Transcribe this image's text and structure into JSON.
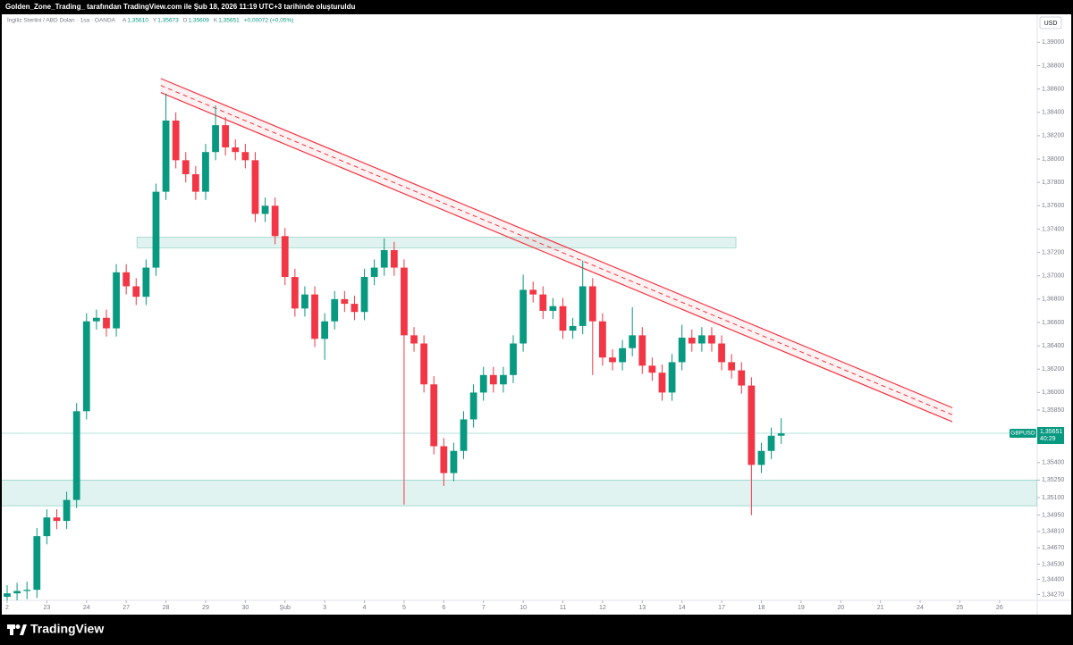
{
  "header": {
    "text": "Golden_Zone_Trading_ tarafından TradingView.com ile Şub 18, 2026 11:19 UTC+3 tarihinde oluşturuldu"
  },
  "footer": {
    "brand": "TradingView"
  },
  "chart_data": {
    "type": "candlestick",
    "instrument": "İngiliz Sterlini / ABD Doları · 1sa · OANDA",
    "ohlc_legend": [
      {
        "key": "A",
        "text": "1,35610"
      },
      {
        "key": "Y",
        "text": "1,35673"
      },
      {
        "key": "D",
        "text": "1,35609"
      },
      {
        "key": "K",
        "text": "1,35651"
      }
    ],
    "change_text": "+0,00072 (+0,05%)",
    "currency": "USD",
    "symbol": "GBPUSD",
    "last_price": {
      "value": 1.35651,
      "label": "1,35651"
    },
    "countdown": "40:29",
    "up_color": "#089981",
    "down_color": "#f23645",
    "grid": false,
    "xlim": [
      -0.18,
      25.95
    ],
    "ylim": [
      1.3422,
      1.3924
    ],
    "xticks": [
      {
        "value": 0,
        "label": "2"
      },
      {
        "value": 1,
        "label": "23"
      },
      {
        "value": 2,
        "label": "24"
      },
      {
        "value": 3,
        "label": "27"
      },
      {
        "value": 4,
        "label": "28"
      },
      {
        "value": 5,
        "label": "29"
      },
      {
        "value": 6,
        "label": "30"
      },
      {
        "value": 7,
        "label": "Şub"
      },
      {
        "value": 8,
        "label": "3"
      },
      {
        "value": 9,
        "label": "4"
      },
      {
        "value": 10,
        "label": "5"
      },
      {
        "value": 11,
        "label": "6"
      },
      {
        "value": 12,
        "label": "7"
      },
      {
        "value": 13,
        "label": "10"
      },
      {
        "value": 14,
        "label": "11"
      },
      {
        "value": 15,
        "label": "12"
      },
      {
        "value": 16,
        "label": "13"
      },
      {
        "value": 17,
        "label": "14"
      },
      {
        "value": 18,
        "label": "17"
      },
      {
        "value": 19,
        "label": "18"
      },
      {
        "value": 20,
        "label": "19"
      },
      {
        "value": 21,
        "label": "20"
      },
      {
        "value": 22,
        "label": "21"
      },
      {
        "value": 23,
        "label": "24"
      },
      {
        "value": 24,
        "label": "25"
      },
      {
        "value": 25,
        "label": "26"
      }
    ],
    "yticks": [
      {
        "value": 1.39,
        "label": "1,39000"
      },
      {
        "value": 1.388,
        "label": "1,38800"
      },
      {
        "value": 1.386,
        "label": "1,38600"
      },
      {
        "value": 1.384,
        "label": "1,38400"
      },
      {
        "value": 1.382,
        "label": "1,38200"
      },
      {
        "value": 1.38,
        "label": "1,38000"
      },
      {
        "value": 1.378,
        "label": "1,37800"
      },
      {
        "value": 1.376,
        "label": "1,37600"
      },
      {
        "value": 1.374,
        "label": "1,37400"
      },
      {
        "value": 1.372,
        "label": "1,37200"
      },
      {
        "value": 1.37,
        "label": "1,37000"
      },
      {
        "value": 1.368,
        "label": "1,36800"
      },
      {
        "value": 1.366,
        "label": "1,36600"
      },
      {
        "value": 1.364,
        "label": "1,36400"
      },
      {
        "value": 1.362,
        "label": "1,36200"
      },
      {
        "value": 1.36,
        "label": "1,36000"
      },
      {
        "value": 1.3585,
        "label": "1,35850"
      },
      {
        "value": 1.354,
        "label": "1,35400"
      },
      {
        "value": 1.3525,
        "label": "1,35250"
      },
      {
        "value": 1.351,
        "label": "1,35100"
      },
      {
        "value": 1.3495,
        "label": "1,34950"
      },
      {
        "value": 1.3481,
        "label": "1,34810"
      },
      {
        "value": 1.3467,
        "label": "1,34670"
      },
      {
        "value": 1.3453,
        "label": "1,34530"
      },
      {
        "value": 1.344,
        "label": "1,34400"
      },
      {
        "value": 1.3427,
        "label": "1,34270"
      }
    ],
    "x": [
      0,
      0.25,
      0.5,
      0.75,
      1,
      1.25,
      1.5,
      1.75,
      2,
      2.25,
      2.5,
      2.75,
      3,
      3.25,
      3.5,
      3.75,
      4,
      4.25,
      4.5,
      4.75,
      5,
      5.25,
      5.5,
      5.75,
      6,
      6.25,
      6.5,
      6.75,
      7,
      7.25,
      7.5,
      7.75,
      8,
      8.25,
      8.5,
      8.75,
      9,
      9.25,
      9.5,
      9.75,
      10,
      10.25,
      10.5,
      10.75,
      11,
      11.25,
      11.5,
      11.75,
      12,
      12.25,
      12.5,
      12.75,
      13,
      13.25,
      13.5,
      13.75,
      14,
      14.25,
      14.5,
      14.75,
      15,
      15.25,
      15.5,
      15.75,
      16,
      16.25,
      16.5,
      16.75,
      17,
      17.25,
      17.5,
      17.75,
      18,
      18.25,
      18.5,
      18.75,
      19,
      19.25,
      19.5
    ],
    "open": [
      1.3425,
      1.3428,
      1.343,
      1.3431,
      1.3477,
      1.3493,
      1.349,
      1.3508,
      1.3584,
      1.3661,
      1.3664,
      1.3655,
      1.3703,
      1.3691,
      1.3682,
      1.3707,
      1.3772,
      1.3833,
      1.3799,
      1.3787,
      1.3772,
      1.3806,
      1.3829,
      1.381,
      1.3806,
      1.3799,
      1.3753,
      1.376,
      1.3734,
      1.3699,
      1.3672,
      1.3684,
      1.3646,
      1.3661,
      1.368,
      1.3676,
      1.3669,
      1.3699,
      1.3707,
      1.3722,
      1.3707,
      1.3649,
      1.3642,
      1.3607,
      1.3554,
      1.3531,
      1.355,
      1.3577,
      1.36,
      1.3615,
      1.3607,
      1.3615,
      1.3642,
      1.3688,
      1.3684,
      1.367,
      1.3674,
      1.3653,
      1.3657,
      1.3691,
      1.3661,
      1.363,
      1.3626,
      1.3638,
      1.3649,
      1.3623,
      1.3617,
      1.36,
      1.3626,
      1.3647,
      1.3642,
      1.3649,
      1.3642,
      1.3626,
      1.3619,
      1.3606,
      1.3538,
      1.355,
      1.3563
    ],
    "high": [
      1.3435,
      1.3437,
      1.3438,
      1.3484,
      1.35,
      1.35,
      1.3515,
      1.3591,
      1.3668,
      1.3671,
      1.3671,
      1.371,
      1.371,
      1.3698,
      1.3714,
      1.3779,
      1.3856,
      1.384,
      1.3806,
      1.3794,
      1.3813,
      1.3846,
      1.3836,
      1.3817,
      1.3813,
      1.3806,
      1.3767,
      1.3767,
      1.3741,
      1.3706,
      1.3691,
      1.3691,
      1.3668,
      1.3687,
      1.3687,
      1.3683,
      1.3706,
      1.3714,
      1.3732,
      1.3729,
      1.3714,
      1.3656,
      1.3649,
      1.3614,
      1.3561,
      1.3557,
      1.3584,
      1.3607,
      1.3622,
      1.3622,
      1.3622,
      1.3649,
      1.3701,
      1.3695,
      1.3691,
      1.3681,
      1.3681,
      1.3664,
      1.3713,
      1.3698,
      1.3668,
      1.3637,
      1.3645,
      1.3673,
      1.3656,
      1.363,
      1.3624,
      1.3633,
      1.3658,
      1.3654,
      1.3656,
      1.3656,
      1.3649,
      1.3633,
      1.3626,
      1.3613,
      1.3557,
      1.357,
      1.3578
    ],
    "low": [
      1.3418,
      1.3421,
      1.3423,
      1.3424,
      1.347,
      1.3483,
      1.3483,
      1.3501,
      1.3577,
      1.3654,
      1.3648,
      1.3648,
      1.3684,
      1.3675,
      1.3675,
      1.37,
      1.3765,
      1.3792,
      1.378,
      1.3765,
      1.3765,
      1.3799,
      1.3803,
      1.3799,
      1.3792,
      1.3746,
      1.3746,
      1.3727,
      1.3692,
      1.3665,
      1.3665,
      1.3639,
      1.3628,
      1.3654,
      1.3669,
      1.3662,
      1.3662,
      1.3692,
      1.37,
      1.37,
      1.3504,
      1.3635,
      1.36,
      1.3547,
      1.352,
      1.3524,
      1.3543,
      1.357,
      1.3593,
      1.36,
      1.36,
      1.3608,
      1.3635,
      1.3677,
      1.3663,
      1.3663,
      1.3646,
      1.3646,
      1.365,
      1.3615,
      1.3623,
      1.3619,
      1.3619,
      1.3631,
      1.3616,
      1.361,
      1.3593,
      1.3593,
      1.3619,
      1.3635,
      1.3635,
      1.3635,
      1.3619,
      1.3612,
      1.3599,
      1.3495,
      1.3531,
      1.3543,
      1.3556
    ],
    "close": [
      1.3428,
      1.343,
      1.3431,
      1.3477,
      1.3493,
      1.349,
      1.3508,
      1.3584,
      1.3661,
      1.3664,
      1.3655,
      1.3703,
      1.3691,
      1.3682,
      1.3707,
      1.3772,
      1.3833,
      1.3799,
      1.3787,
      1.3772,
      1.3806,
      1.3829,
      1.381,
      1.3806,
      1.3799,
      1.3753,
      1.376,
      1.3734,
      1.3699,
      1.3672,
      1.3684,
      1.3646,
      1.3661,
      1.368,
      1.3676,
      1.3669,
      1.3699,
      1.3707,
      1.3722,
      1.3707,
      1.3649,
      1.3642,
      1.3607,
      1.3554,
      1.3531,
      1.355,
      1.3577,
      1.36,
      1.3615,
      1.3607,
      1.3615,
      1.3642,
      1.3688,
      1.3684,
      1.367,
      1.3674,
      1.3653,
      1.3657,
      1.3691,
      1.3661,
      1.363,
      1.3626,
      1.3638,
      1.3649,
      1.3623,
      1.3617,
      1.36,
      1.3626,
      1.3647,
      1.3642,
      1.3649,
      1.3642,
      1.3626,
      1.3619,
      1.3606,
      1.3538,
      1.355,
      1.3563,
      1.3565
    ],
    "trend_lines": [
      {
        "x": [
          3.87,
          23.81
        ],
        "y": [
          1.3869,
          1.3587
        ],
        "dashed": false
      },
      {
        "x": [
          3.87,
          23.81
        ],
        "y": [
          1.3863,
          1.3581
        ],
        "dashed": true
      },
      {
        "x": [
          3.87,
          23.81
        ],
        "y": [
          1.3857,
          1.3575
        ],
        "dashed": false
      }
    ],
    "trend_color": "#f23645",
    "zones": [
      {
        "x": [
          3.27,
          18.36
        ],
        "y": [
          1.3724,
          1.3733
        ]
      },
      {
        "x": [
          -0.18,
          25.95
        ],
        "y": [
          1.3503,
          1.3525
        ]
      }
    ],
    "zone_color": "#089981"
  }
}
